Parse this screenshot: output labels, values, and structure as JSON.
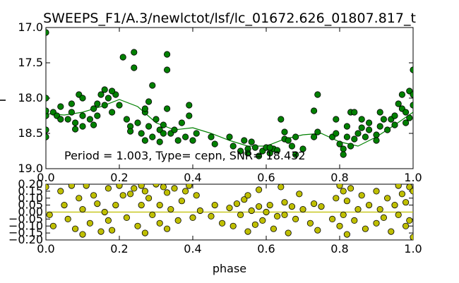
{
  "chart_data": [
    {
      "type": "scatter",
      "title": "SWEEPS_F1/A.3/newlctot/lsf/lc_01672.626_01807.817_t",
      "xlabel": "",
      "ylabel": "I",
      "xlim": [
        0.0,
        1.0
      ],
      "ylim": [
        17.0,
        19.0
      ],
      "y_inverted": true,
      "grid": false,
      "x_ticks": [
        "0.0",
        "0.2",
        "0.4",
        "0.6",
        "0.8",
        "1.0"
      ],
      "y_ticks": [
        "17.0",
        "17.5",
        "18.0",
        "18.5",
        "19.0"
      ],
      "annotation": "Period = 1.003, Type= cepn, SNR= 18.432",
      "colors": {
        "points": "#008000",
        "fit": "#008000"
      },
      "fit_curve": {
        "x": [
          0.0,
          0.05,
          0.1,
          0.15,
          0.2,
          0.25,
          0.3,
          0.35,
          0.4,
          0.45,
          0.5,
          0.55,
          0.6,
          0.65,
          0.7,
          0.75,
          0.8,
          0.85,
          0.9,
          0.95,
          1.0
        ],
        "y": [
          18.22,
          18.24,
          18.2,
          18.12,
          18.02,
          18.12,
          18.35,
          18.45,
          18.42,
          18.5,
          18.6,
          18.68,
          18.68,
          18.58,
          18.52,
          18.5,
          18.62,
          18.68,
          18.55,
          18.38,
          18.2
        ]
      },
      "points": [
        [
          0.0,
          17.07
        ],
        [
          0.0,
          18.45
        ],
        [
          0.0,
          18.55
        ],
        [
          0.0,
          18.0
        ],
        [
          0.0,
          18.25
        ],
        [
          0.0,
          18.18
        ],
        [
          0.02,
          18.2
        ],
        [
          0.03,
          18.25
        ],
        [
          0.04,
          18.3
        ],
        [
          0.04,
          18.12
        ],
        [
          0.06,
          18.3
        ],
        [
          0.07,
          18.2
        ],
        [
          0.07,
          18.08
        ],
        [
          0.08,
          18.35
        ],
        [
          0.08,
          18.44
        ],
        [
          0.09,
          17.95
        ],
        [
          0.1,
          18.0
        ],
        [
          0.1,
          18.25
        ],
        [
          0.1,
          18.4
        ],
        [
          0.12,
          18.3
        ],
        [
          0.13,
          18.15
        ],
        [
          0.13,
          18.38
        ],
        [
          0.14,
          18.08
        ],
        [
          0.15,
          17.95
        ],
        [
          0.16,
          17.88
        ],
        [
          0.16,
          18.1
        ],
        [
          0.17,
          18.0
        ],
        [
          0.18,
          18.2
        ],
        [
          0.19,
          17.95
        ],
        [
          0.2,
          18.1
        ],
        [
          0.21,
          17.42
        ],
        [
          0.22,
          18.3
        ],
        [
          0.23,
          18.4
        ],
        [
          0.23,
          18.47
        ],
        [
          0.24,
          17.35
        ],
        [
          0.24,
          17.57
        ],
        [
          0.25,
          18.35
        ],
        [
          0.26,
          18.5
        ],
        [
          0.27,
          18.2
        ],
        [
          0.27,
          18.6
        ],
        [
          0.28,
          18.05
        ],
        [
          0.28,
          18.4
        ],
        [
          0.29,
          18.55
        ],
        [
          0.29,
          17.82
        ],
        [
          0.3,
          18.3
        ],
        [
          0.31,
          18.45
        ],
        [
          0.31,
          18.62
        ],
        [
          0.32,
          18.38
        ],
        [
          0.33,
          18.15
        ],
        [
          0.33,
          17.38
        ],
        [
          0.33,
          17.6
        ],
        [
          0.34,
          18.5
        ],
        [
          0.35,
          18.45
        ],
        [
          0.36,
          18.6
        ],
        [
          0.37,
          18.35
        ],
        [
          0.38,
          18.55
        ],
        [
          0.39,
          18.1
        ],
        [
          0.39,
          18.25
        ],
        [
          0.4,
          18.6
        ],
        [
          0.41,
          18.5
        ],
        [
          0.45,
          18.55
        ],
        [
          0.46,
          18.65
        ],
        [
          0.5,
          18.55
        ],
        [
          0.51,
          18.68
        ],
        [
          0.53,
          18.75
        ],
        [
          0.54,
          18.6
        ],
        [
          0.55,
          18.72
        ],
        [
          0.56,
          18.62
        ],
        [
          0.57,
          18.7
        ],
        [
          0.58,
          18.82
        ],
        [
          0.59,
          18.75
        ],
        [
          0.6,
          18.7
        ],
        [
          0.61,
          18.78
        ],
        [
          0.62,
          18.72
        ],
        [
          0.63,
          18.74
        ],
        [
          0.64,
          18.3
        ],
        [
          0.65,
          18.48
        ],
        [
          0.65,
          18.58
        ],
        [
          0.66,
          18.6
        ],
        [
          0.67,
          18.68
        ],
        [
          0.68,
          18.8
        ],
        [
          0.68,
          18.55
        ],
        [
          0.7,
          18.72
        ],
        [
          0.73,
          18.55
        ],
        [
          0.73,
          18.18
        ],
        [
          0.74,
          18.48
        ],
        [
          0.74,
          17.95
        ],
        [
          0.78,
          18.55
        ],
        [
          0.79,
          18.5
        ],
        [
          0.8,
          18.65
        ],
        [
          0.81,
          18.72
        ],
        [
          0.81,
          18.8
        ],
        [
          0.82,
          18.55
        ],
        [
          0.82,
          18.4
        ],
        [
          0.83,
          18.2
        ],
        [
          0.83,
          18.68
        ],
        [
          0.84,
          18.58
        ],
        [
          0.85,
          18.5
        ],
        [
          0.86,
          18.3
        ],
        [
          0.86,
          18.42
        ],
        [
          0.87,
          18.55
        ],
        [
          0.88,
          18.35
        ],
        [
          0.9,
          18.52
        ],
        [
          0.9,
          18.6
        ],
        [
          0.91,
          18.2
        ],
        [
          0.91,
          18.4
        ],
        [
          0.92,
          18.3
        ],
        [
          0.93,
          18.45
        ],
        [
          0.94,
          18.3
        ],
        [
          0.95,
          18.25
        ],
        [
          0.95,
          18.38
        ],
        [
          0.96,
          18.08
        ],
        [
          0.97,
          17.95
        ],
        [
          0.97,
          18.15
        ],
        [
          0.98,
          18.35
        ],
        [
          0.98,
          18.2
        ],
        [
          0.99,
          17.9
        ],
        [
          0.99,
          18.28
        ],
        [
          1.0,
          17.6
        ],
        [
          1.0,
          17.95
        ],
        [
          1.0,
          18.1
        ],
        [
          0.18,
          17.9
        ],
        [
          0.14,
          18.25
        ],
        [
          0.55,
          18.78
        ],
        [
          0.61,
          18.7
        ],
        [
          0.27,
          18.15
        ],
        [
          0.32,
          18.5
        ],
        [
          0.79,
          18.3
        ],
        [
          0.84,
          18.2
        ],
        [
          0.88,
          18.45
        ]
      ]
    },
    {
      "type": "scatter",
      "xlabel": "phase",
      "ylabel": "",
      "xlim": [
        0.0,
        1.0
      ],
      "ylim": [
        -0.2,
        0.2
      ],
      "grid": false,
      "x_ticks": [
        "0.0",
        "0.2",
        "0.4",
        "0.6",
        "0.8",
        "1.0"
      ],
      "y_ticks": [
        "0.20",
        "0.15",
        "0.10",
        "0.05",
        "0.00",
        "−0.05",
        "−0.10",
        "−0.15",
        "−0.20"
      ],
      "colors": {
        "points": "#bfbf00",
        "zero_line": "#bfbf00"
      },
      "zero_line": 0.0,
      "points": [
        [
          0.0,
          0.18
        ],
        [
          0.01,
          -0.02
        ],
        [
          0.02,
          -0.1
        ],
        [
          0.04,
          0.15
        ],
        [
          0.05,
          0.05
        ],
        [
          0.06,
          -0.05
        ],
        [
          0.07,
          0.19
        ],
        [
          0.08,
          -0.12
        ],
        [
          0.09,
          0.1
        ],
        [
          0.1,
          -0.16
        ],
        [
          0.1,
          0.02
        ],
        [
          0.11,
          0.19
        ],
        [
          0.12,
          -0.08
        ],
        [
          0.13,
          0.12
        ],
        [
          0.14,
          0.06
        ],
        [
          0.15,
          -0.14
        ],
        [
          0.16,
          0.0
        ],
        [
          0.17,
          0.17
        ],
        [
          0.17,
          -0.06
        ],
        [
          0.18,
          -0.13
        ],
        [
          0.19,
          0.05
        ],
        [
          0.2,
          0.19
        ],
        [
          0.21,
          0.12
        ],
        [
          0.22,
          -0.04
        ],
        [
          0.23,
          0.13
        ],
        [
          0.24,
          0.17
        ],
        [
          0.25,
          -0.1
        ],
        [
          0.26,
          0.19
        ],
        [
          0.26,
          0.05
        ],
        [
          0.27,
          0.15
        ],
        [
          0.27,
          -0.15
        ],
        [
          0.28,
          0.1
        ],
        [
          0.29,
          -0.02
        ],
        [
          0.3,
          0.2
        ],
        [
          0.31,
          0.05
        ],
        [
          0.31,
          -0.08
        ],
        [
          0.32,
          0.18
        ],
        [
          0.33,
          -0.12
        ],
        [
          0.33,
          0.14
        ],
        [
          0.34,
          0.02
        ],
        [
          0.35,
          0.17
        ],
        [
          0.36,
          -0.06
        ],
        [
          0.37,
          0.08
        ],
        [
          0.38,
          0.15
        ],
        [
          0.39,
          0.19
        ],
        [
          0.4,
          -0.04
        ],
        [
          0.41,
          0.12
        ],
        [
          0.42,
          0.01
        ],
        [
          0.45,
          -0.03
        ],
        [
          0.46,
          0.05
        ],
        [
          0.48,
          -0.08
        ],
        [
          0.5,
          0.03
        ],
        [
          0.51,
          -0.1
        ],
        [
          0.52,
          0.06
        ],
        [
          0.53,
          -0.02
        ],
        [
          0.54,
          0.09
        ],
        [
          0.55,
          -0.14
        ],
        [
          0.55,
          0.12
        ],
        [
          0.56,
          0.01
        ],
        [
          0.57,
          -0.09
        ],
        [
          0.58,
          0.16
        ],
        [
          0.58,
          0.04
        ],
        [
          0.59,
          -0.06
        ],
        [
          0.6,
          0.0
        ],
        [
          0.61,
          0.05
        ],
        [
          0.62,
          -0.12
        ],
        [
          0.63,
          -0.03
        ],
        [
          0.64,
          0.18
        ],
        [
          0.65,
          -0.02
        ],
        [
          0.65,
          0.07
        ],
        [
          0.66,
          -0.15
        ],
        [
          0.67,
          0.04
        ],
        [
          0.68,
          -0.05
        ],
        [
          0.69,
          0.13
        ],
        [
          0.7,
          0.02
        ],
        [
          0.72,
          -0.08
        ],
        [
          0.73,
          0.06
        ],
        [
          0.74,
          -0.13
        ],
        [
          0.75,
          0.04
        ],
        [
          0.78,
          -0.05
        ],
        [
          0.79,
          0.1
        ],
        [
          0.8,
          0.19
        ],
        [
          0.8,
          -0.1
        ],
        [
          0.81,
          0.15
        ],
        [
          0.81,
          -0.02
        ],
        [
          0.82,
          -0.16
        ],
        [
          0.82,
          0.08
        ],
        [
          0.83,
          0.17
        ],
        [
          0.84,
          -0.06
        ],
        [
          0.85,
          0.02
        ],
        [
          0.86,
          0.12
        ],
        [
          0.87,
          -0.12
        ],
        [
          0.88,
          0.05
        ],
        [
          0.9,
          0.15
        ],
        [
          0.9,
          -0.08
        ],
        [
          0.91,
          0.02
        ],
        [
          0.92,
          -0.04
        ],
        [
          0.93,
          0.1
        ],
        [
          0.94,
          -0.14
        ],
        [
          0.95,
          0.05
        ],
        [
          0.96,
          0.19
        ],
        [
          0.96,
          -0.02
        ],
        [
          0.97,
          0.13
        ],
        [
          0.98,
          -0.1
        ],
        [
          0.98,
          0.07
        ],
        [
          0.99,
          0.18
        ],
        [
          0.99,
          -0.06
        ],
        [
          1.0,
          0.15
        ],
        [
          1.0,
          -0.18
        ]
      ]
    }
  ]
}
